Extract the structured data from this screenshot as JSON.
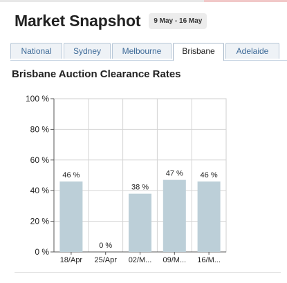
{
  "header": {
    "title": "Market Snapshot",
    "date_range": "9 May - 16 May"
  },
  "tabs": [
    {
      "label": "National",
      "active": false
    },
    {
      "label": "Sydney",
      "active": false
    },
    {
      "label": "Melbourne",
      "active": false
    },
    {
      "label": "Brisbane",
      "active": true
    },
    {
      "label": "Adelaide",
      "active": false
    }
  ],
  "section": {
    "heading": "Brisbane Auction Clearance Rates"
  },
  "colors": {
    "bar": "#bccfd8",
    "tab_text": "#3d6a98"
  },
  "chart_data": {
    "type": "bar",
    "title": "Brisbane Auction Clearance Rates",
    "categories": [
      "18/Apr",
      "25/Apr",
      "02/M...",
      "09/M...",
      "16/M..."
    ],
    "values": [
      46,
      0,
      38,
      47,
      46
    ],
    "data_labels": [
      "46 %",
      "0 %",
      "38 %",
      "47 %",
      "46 %"
    ],
    "ylim": [
      0,
      100
    ],
    "yticks": [
      0,
      20,
      40,
      60,
      80,
      100
    ],
    "ytick_labels": [
      "0 %",
      "20 %",
      "40 %",
      "60 %",
      "80 %",
      "100 %"
    ],
    "grid": true,
    "xlabel": "",
    "ylabel": ""
  }
}
